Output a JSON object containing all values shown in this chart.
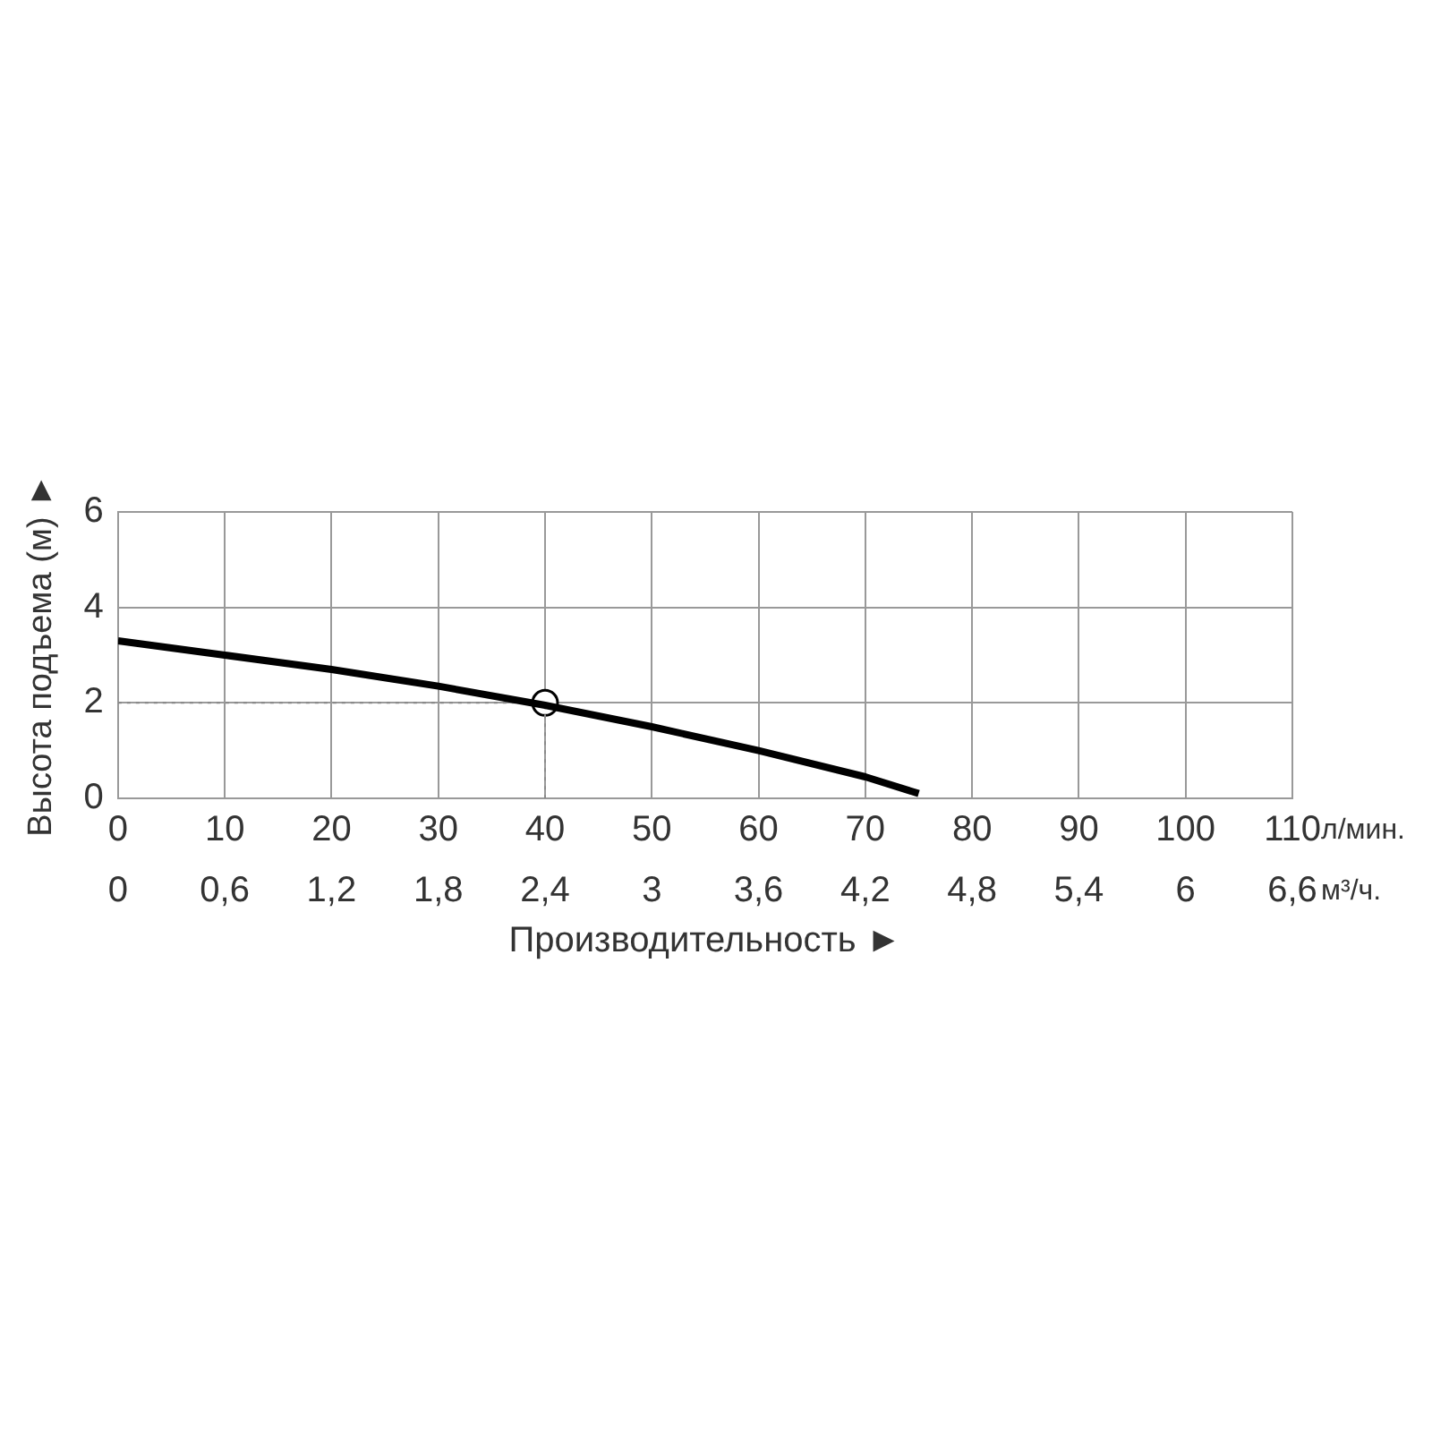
{
  "chart_data": {
    "type": "line",
    "xlabel": "Производительность ►",
    "ylabel": "Высота подъема (м) ►",
    "annotations": [
      "л/мин.",
      "м³/ч."
    ],
    "xlim": [
      0,
      110
    ],
    "xticks": [
      0,
      10,
      20,
      30,
      40,
      50,
      60,
      70,
      80,
      90,
      100,
      110
    ],
    "x2lim": [
      0,
      6.6
    ],
    "x2ticks": [
      0,
      {
        "value": 0.6,
        "label": "0,6"
      },
      {
        "value": 1.2,
        "label": "1,2"
      },
      {
        "value": 1.8,
        "label": "1,8"
      },
      {
        "value": 2.4,
        "label": "2,4"
      },
      3,
      {
        "value": 3.6,
        "label": "3,6"
      },
      {
        "value": 4.2,
        "label": "4,2"
      },
      {
        "value": 4.8,
        "label": "4,8"
      },
      {
        "value": 5.4,
        "label": "5,4"
      },
      6,
      {
        "value": 6.6,
        "label": "6,6"
      }
    ],
    "ylim": [
      0,
      6
    ],
    "yticks": [
      0,
      2,
      4,
      6
    ],
    "grid": true,
    "legend": false,
    "series": [
      {
        "color": "#000000",
        "x": [
          0,
          10,
          20,
          30,
          40,
          50,
          60,
          70,
          75
        ],
        "values": [
          3.3,
          3.0,
          2.7,
          2.35,
          1.95,
          1.5,
          1.0,
          0.45,
          0.1
        ],
        "marker": "none",
        "line_style": "solid"
      },
      {
        "color": "#888888",
        "x": [
          0,
          40,
          40
        ],
        "values": [
          2,
          2,
          0
        ],
        "marker": "none",
        "line_style": "dotted"
      },
      {
        "type": "scatter",
        "color": "#000000",
        "x": [
          40
        ],
        "values": [
          2
        ],
        "marker": "circle"
      }
    ]
  }
}
